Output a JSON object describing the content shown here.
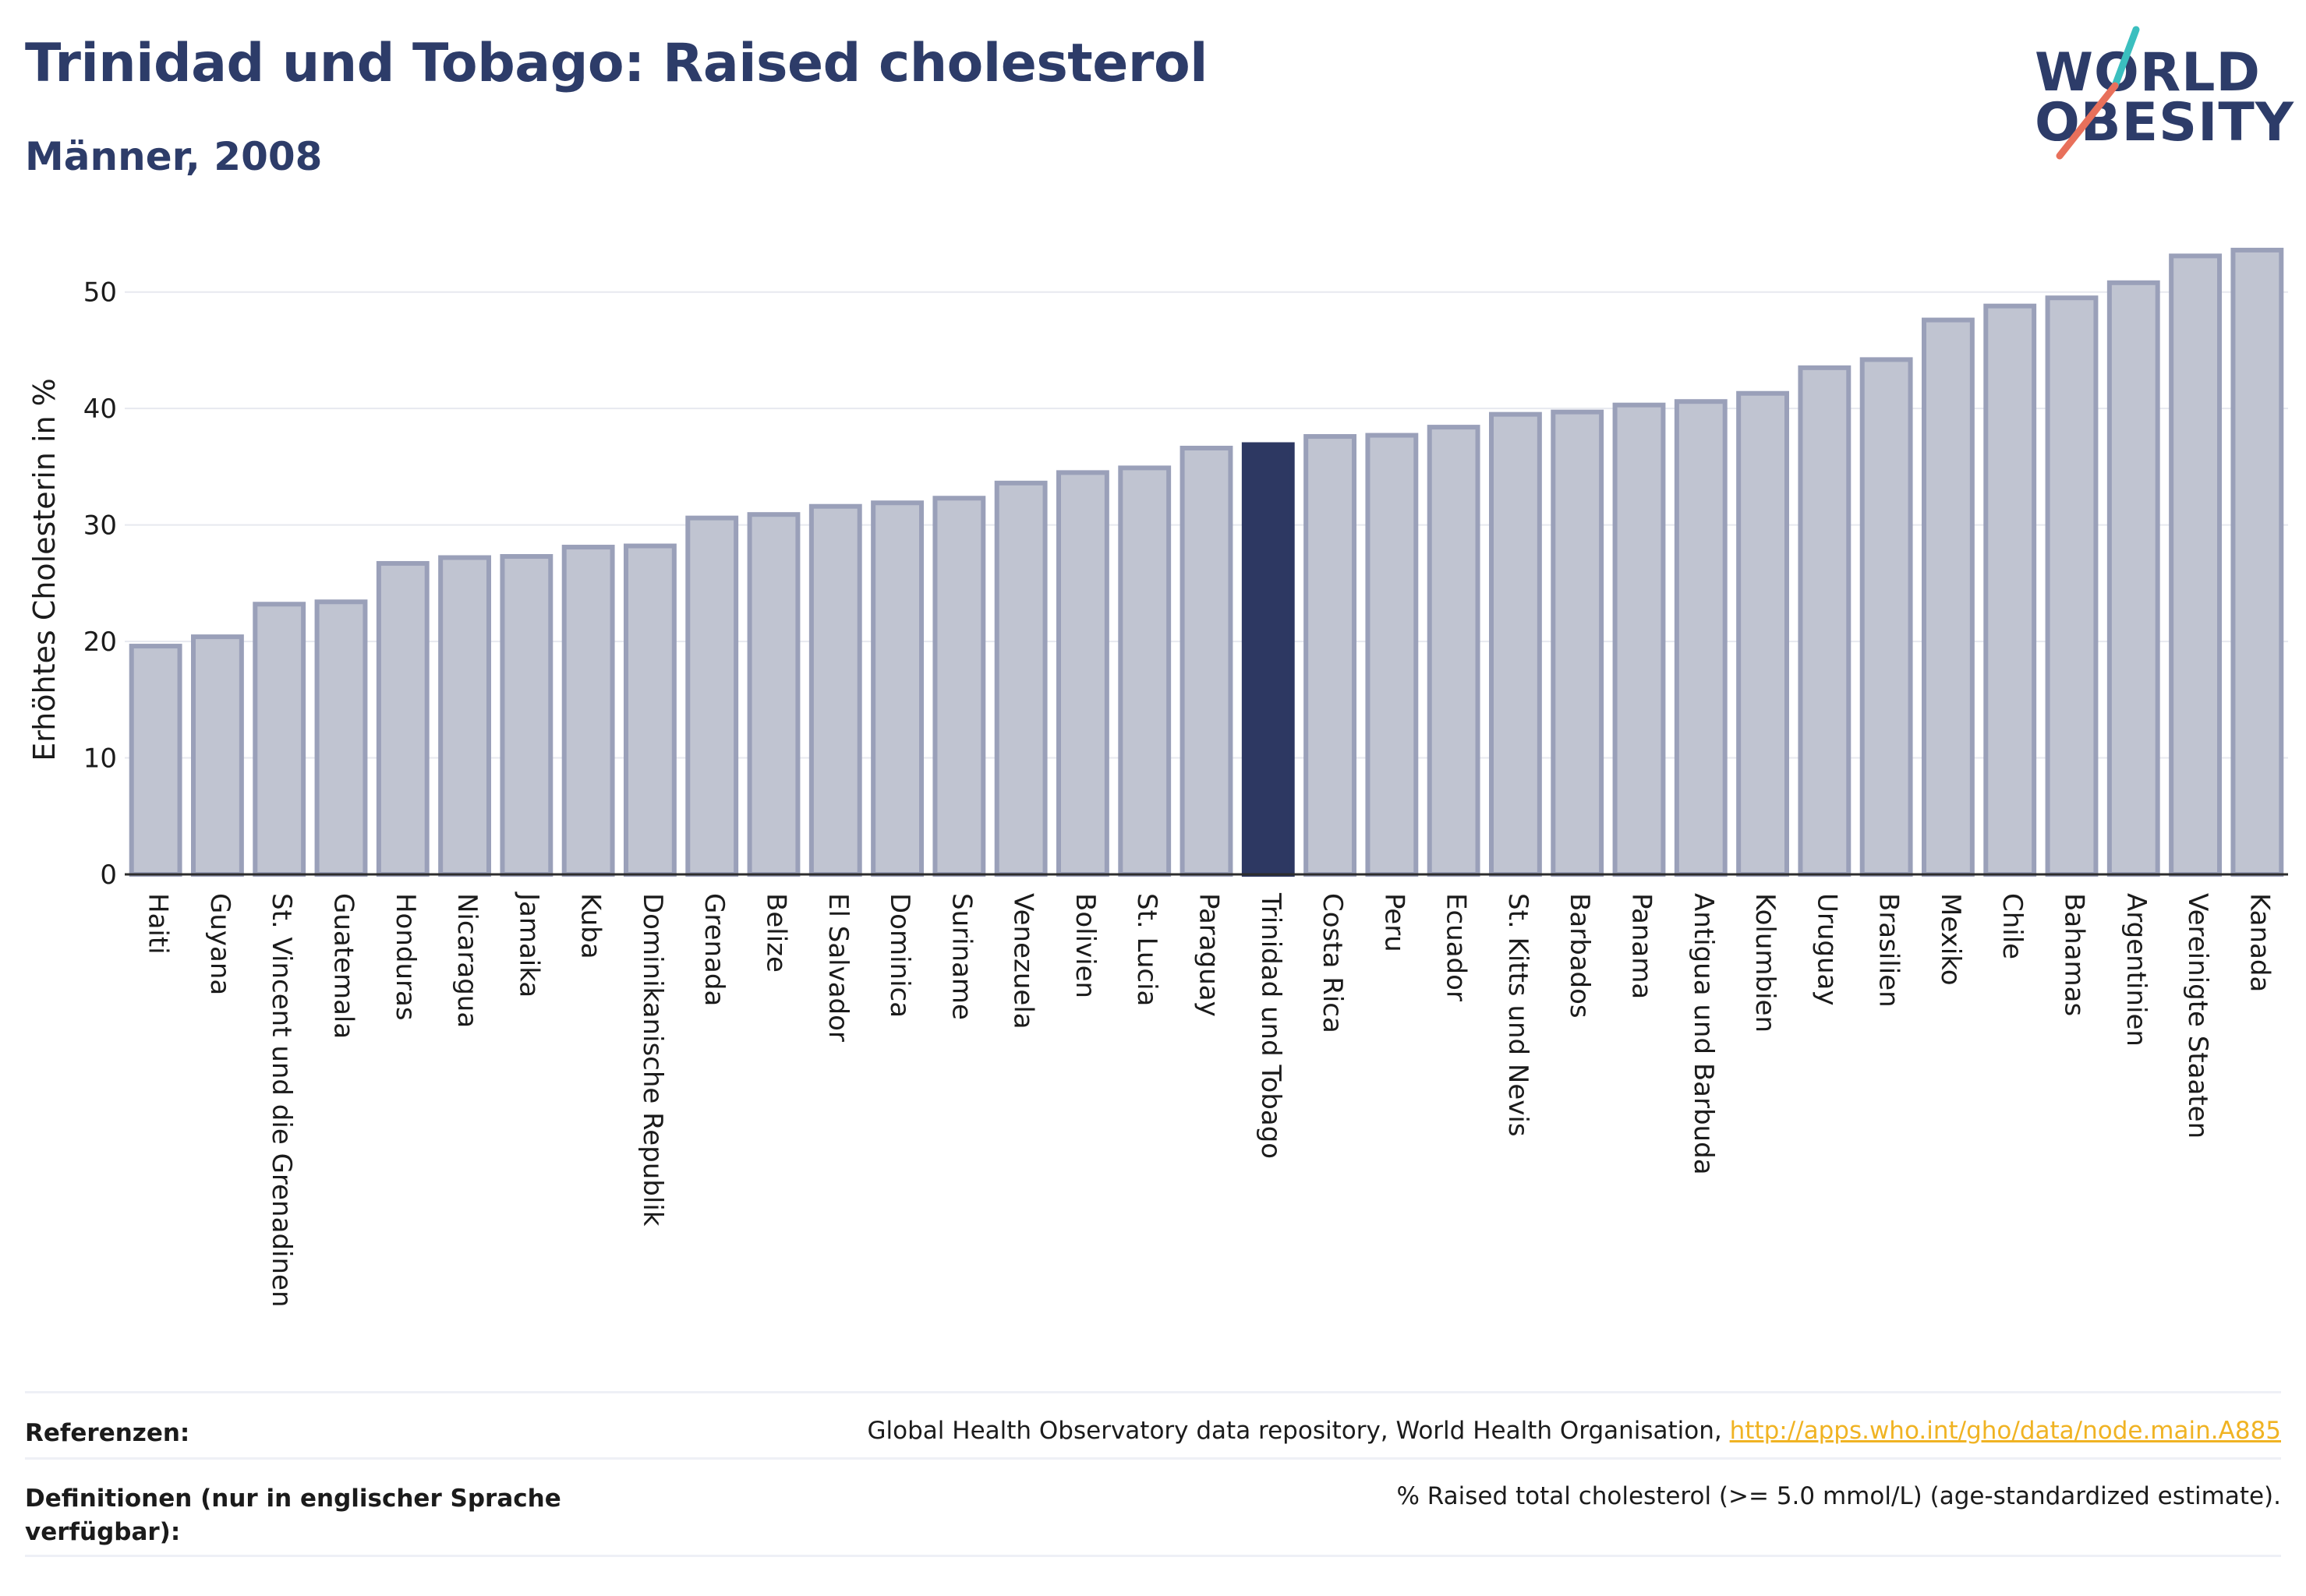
{
  "header": {
    "title": "Trinidad und Tobago: Raised cholesterol",
    "subtitle": "Männer, 2008"
  },
  "logo": {
    "line1": "WORLD",
    "line2": "OBESITY",
    "colors": {
      "text": "#2d3c69",
      "slash_top": "#3bbfbf",
      "slash_bottom": "#e8705b"
    }
  },
  "chart_data": {
    "type": "bar",
    "title": "",
    "xlabel": "",
    "ylabel": "Erhöhtes Cholesterin in %",
    "ylim": [
      0,
      55
    ],
    "yticks": [
      0,
      10,
      20,
      30,
      40,
      50
    ],
    "grid": true,
    "highlight": "Trinidad und Tobago",
    "colors": {
      "bar": "#c0c4d1",
      "bar_edge": "#9aa0b9",
      "highlight": "#2d3862"
    },
    "categories": [
      "Haiti",
      "Guyana",
      "St. Vincent und die Grenadinen",
      "Guatemala",
      "Honduras",
      "Nicaragua",
      "Jamaika",
      "Kuba",
      "Dominikanische Republik",
      "Grenada",
      "Belize",
      "El Salvador",
      "Dominica",
      "Suriname",
      "Venezuela",
      "Bolivien",
      "St. Lucia",
      "Paraguay",
      "Trinidad und Tobago",
      "Costa Rica",
      "Peru",
      "Ecuador",
      "St. Kitts und Nevis",
      "Barbados",
      "Panama",
      "Antigua und Barbuda",
      "Kolumbien",
      "Uruguay",
      "Brasilien",
      "Mexiko",
      "Chile",
      "Bahamas",
      "Argentinien",
      "Vereinigte Staaten",
      "Kanada"
    ],
    "values": [
      19.6,
      20.4,
      23.2,
      23.4,
      26.7,
      27.2,
      27.3,
      28.1,
      28.2,
      30.6,
      30.9,
      31.6,
      31.9,
      32.3,
      33.6,
      34.5,
      34.9,
      36.6,
      36.9,
      37.6,
      37.7,
      38.4,
      39.5,
      39.7,
      40.3,
      40.6,
      41.3,
      43.5,
      44.2,
      47.6,
      48.8,
      49.5,
      50.8,
      53.1,
      53.6
    ]
  },
  "footer": {
    "references_label": "Referenzen:",
    "references_text": "Global Health Observatory data repository, World Health Organisation, ",
    "references_link": "http://apps.who.int/gho/data/node.main.A885",
    "definitions_label": "Definitionen (nur in englischer Sprache verfügbar):",
    "definitions_text": "% Raised total cholesterol (>= 5.0 mmol/L) (age-standardized estimate)."
  }
}
